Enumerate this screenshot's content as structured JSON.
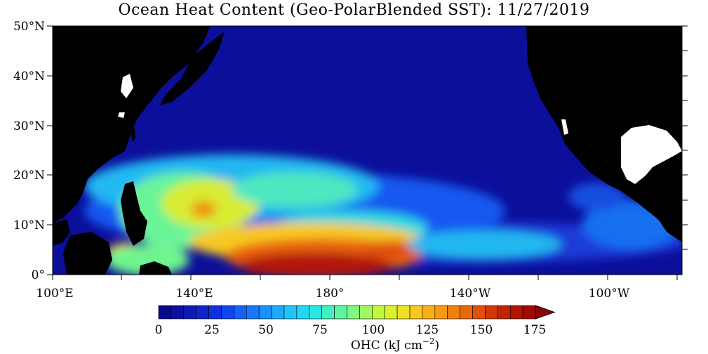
{
  "title": "Ocean Heat Content (Geo-PolarBlended SST): 11/27/2019",
  "axes": {
    "y_ticks": [
      "50°N",
      "40°N",
      "30°N",
      "20°N",
      "10°N",
      "0°"
    ],
    "x_ticks": [
      "100°E",
      "140°E",
      "180°",
      "140°W",
      "100°W"
    ]
  },
  "colorbar": {
    "label_main": "OHC (kJ cm",
    "label_exp": "−2",
    "label_close": ")",
    "tick_labels": [
      "0",
      "25",
      "50",
      "75",
      "100",
      "125",
      "150",
      "175"
    ],
    "colors": [
      "#0a0a8c",
      "#0c0fa0",
      "#0f1ab4",
      "#1023c8",
      "#1030dc",
      "#1245ec",
      "#1560f5",
      "#1878f8",
      "#1a90fa",
      "#1eaafc",
      "#20c4fc",
      "#22d8f4",
      "#28e8e0",
      "#40f0c0",
      "#60f4a0",
      "#80f880",
      "#a0f860",
      "#c0f840",
      "#dcf030",
      "#f0e028",
      "#f8c820",
      "#f8b018",
      "#f89814",
      "#f08010",
      "#e8680c",
      "#e0500a",
      "#d03808",
      "#c02406",
      "#b01404",
      "#a00a04"
    ],
    "overflow_color": "#8c0606"
  },
  "map_colors": {
    "ocean_deep": "#0c0f9a",
    "ocean_mid": "#0f1fc8",
    "land": "#000000",
    "missing": "#ffffff"
  }
}
